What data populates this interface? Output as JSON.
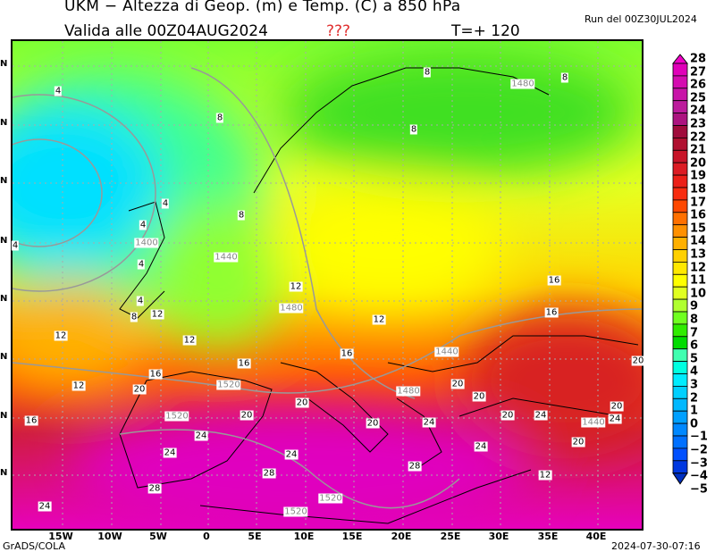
{
  "header": {
    "title": "UKM − Altezza di Geop. (m) e Temp. (C) a 850 hPa",
    "valid": "Valida alle 00Z04AUG2024",
    "marker": "???",
    "timestep": "T=+ 120",
    "run": "Run del 00Z30JUL2024"
  },
  "footer": {
    "credit": "GrADS/COLA",
    "timestamp": "2024-07-30-07:16"
  },
  "map": {
    "lon_labels": [
      "15W",
      "10W",
      "5W",
      "0",
      "5E",
      "10E",
      "15E",
      "20E",
      "25E",
      "30E",
      "35E",
      "40E"
    ],
    "lat_labels": [
      "N",
      "N",
      "N",
      "N",
      "N",
      "N",
      "N",
      "N"
    ],
    "temp_contour_labels": [
      "4",
      "8",
      "8",
      "8",
      "8",
      "4",
      "8",
      "4",
      "4",
      "4",
      "4",
      "8",
      "12",
      "12",
      "12",
      "12",
      "12",
      "12",
      "16",
      "16",
      "16",
      "16",
      "16",
      "20",
      "20",
      "20",
      "20",
      "20",
      "20",
      "20",
      "20",
      "24",
      "24",
      "24",
      "24",
      "24",
      "24",
      "24",
      "28",
      "28",
      "28",
      "20",
      "12",
      "16",
      "20",
      "24"
    ],
    "geop_contour_labels": [
      "1480",
      "1400",
      "1440",
      "1480",
      "1440",
      "1480",
      "1520",
      "1520",
      "1520",
      "1520",
      "1440"
    ]
  },
  "colorbar": {
    "labels": [
      "28",
      "27",
      "26",
      "25",
      "24",
      "23",
      "22",
      "21",
      "20",
      "19",
      "18",
      "17",
      "16",
      "15",
      "14",
      "13",
      "12",
      "11",
      "10",
      "9",
      "8",
      "7",
      "6",
      "5",
      "4",
      "3",
      "2",
      "1",
      "0",
      "−1",
      "−2",
      "−3",
      "−4",
      "−5"
    ],
    "colors": [
      "#f000c8",
      "#e000b8",
      "#d40cb0",
      "#c814a8",
      "#bc1c9c",
      "#ac1480",
      "#a00c3c",
      "#b01030",
      "#c81428",
      "#dc1c24",
      "#ec2018",
      "#f82c10",
      "#ff4800",
      "#ff7000",
      "#ff9000",
      "#ffb000",
      "#ffd000",
      "#ffe800",
      "#ffff00",
      "#e0ff20",
      "#b0ff30",
      "#70ff20",
      "#30ec00",
      "#00dc00",
      "#40ffb0",
      "#00ffe0",
      "#00ecff",
      "#00d0ff",
      "#00b8ff",
      "#00a0ff",
      "#0088ff",
      "#0070ff",
      "#0050ff",
      "#0038e0",
      "#0030c0"
    ]
  }
}
